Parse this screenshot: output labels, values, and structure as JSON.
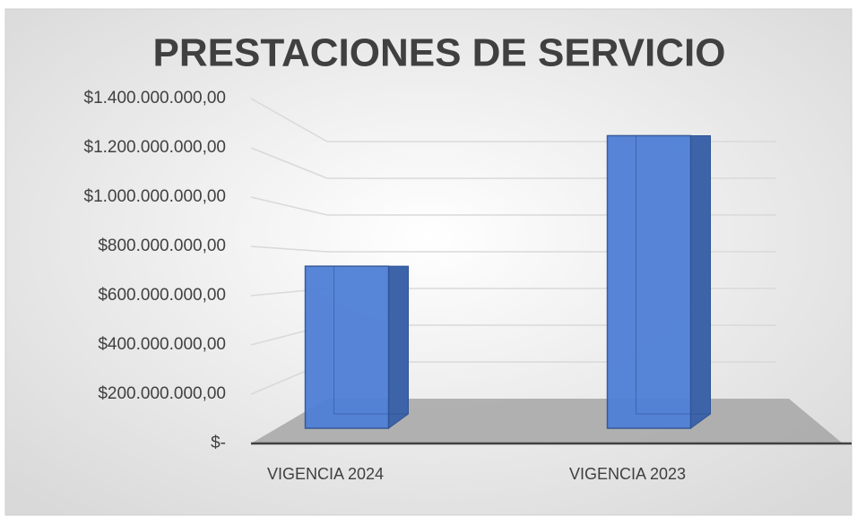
{
  "chart_data": {
    "type": "bar3d",
    "title": "PRESTACIONES DE SERVICIO",
    "categories": [
      "VIGENCIA 2024",
      "VIGENCIA 2023"
    ],
    "values": [
      720000000,
      1300000000
    ],
    "color": "#4f7fd6",
    "ylim": [
      0,
      1400000000
    ],
    "yticks": [
      {
        "value": 0,
        "label": "$-"
      },
      {
        "value": 200000000,
        "label": "$200.000.000,00"
      },
      {
        "value": 400000000,
        "label": "$400.000.000,00"
      },
      {
        "value": 600000000,
        "label": "$600.000.000,00"
      },
      {
        "value": 800000000,
        "label": "$800.000.000,00"
      },
      {
        "value": 1000000000,
        "label": "$1.000.000.000,00"
      },
      {
        "value": 1200000000,
        "label": "$1.200.000.000,00"
      },
      {
        "value": 1400000000,
        "label": "$1.400.000.000,00"
      }
    ],
    "grid": true
  }
}
